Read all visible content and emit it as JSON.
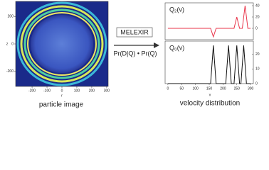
{
  "image": {
    "caption": "particle image",
    "x_label": "r",
    "y_label": "z",
    "xlim": [
      -310,
      310
    ],
    "ylim": [
      -310,
      310
    ],
    "xticks": [
      -200,
      -100,
      0,
      100,
      200,
      300
    ],
    "yticks": [
      -200,
      0,
      200
    ]
  },
  "method": {
    "label": "MELEXIR",
    "formula": "Pr(D|Q) • Pr(Q)"
  },
  "velocity": {
    "caption": "velocity distribution",
    "x_label": "v",
    "xlim": [
      -10,
      310
    ],
    "xticks": [
      0,
      50,
      100,
      150,
      200,
      250,
      300
    ],
    "charts": [
      {
        "type": "line",
        "name": "Q₂(v)",
        "color": "#e8344a",
        "x": [
          0,
          155,
          165,
          175,
          240,
          250,
          260,
          270,
          280,
          290,
          300
        ],
        "values": [
          0,
          0,
          -15,
          0,
          0,
          20,
          0,
          0,
          40,
          0,
          0
        ],
        "ylim": [
          -20,
          45
        ],
        "yticks": [
          0,
          20,
          40
        ]
      },
      {
        "type": "line",
        "name": "Q₀(v)",
        "color": "#111111",
        "x": [
          0,
          155,
          165,
          175,
          210,
          220,
          230,
          240,
          250,
          260,
          265,
          275,
          285,
          300
        ],
        "values": [
          0,
          0,
          26,
          0,
          0,
          26,
          0,
          0,
          26,
          0,
          0,
          26,
          0,
          0
        ],
        "ylim": [
          0,
          29
        ],
        "yticks": [
          0,
          10,
          20
        ]
      }
    ]
  }
}
